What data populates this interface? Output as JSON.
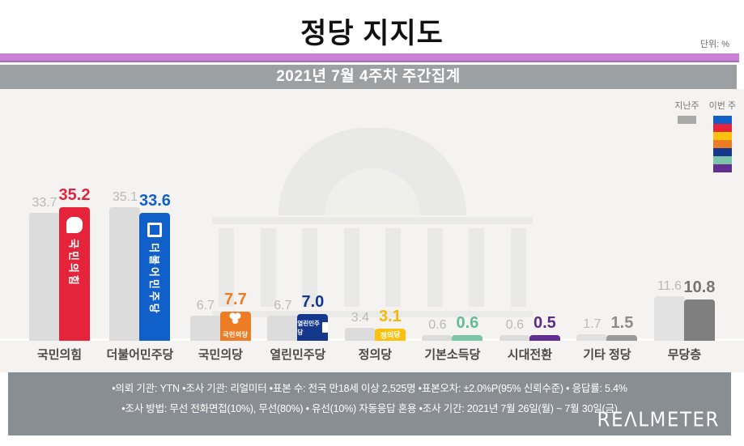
{
  "header": {
    "title": "정당 지지도",
    "unit_label": "단위: %"
  },
  "subtitle_banner": "2021년 7월 4주차 주간집계",
  "legend": {
    "last_week_label": "지난주",
    "this_week_label": "이번 주",
    "last_week_color": "#a8a8a8",
    "this_week_colors": [
      "#1160c9",
      "#e5243b",
      "#fcc10e",
      "#ee7c24",
      "#15388d",
      "#7cc5a8",
      "#632e92"
    ]
  },
  "chart_data": {
    "type": "bar",
    "title": "정당 지지도",
    "unit": "%",
    "categories": [
      "국민의힘",
      "더불어민주당",
      "국민의당",
      "열린민주당",
      "정의당",
      "기본소득당",
      "시대전환",
      "기타 정당",
      "무당층"
    ],
    "series": [
      {
        "name": "지난주",
        "values": [
          33.7,
          35.1,
          6.7,
          6.7,
          3.4,
          0.6,
          0.6,
          1.7,
          11.6
        ]
      },
      {
        "name": "이번 주",
        "values": [
          35.2,
          33.6,
          7.7,
          7.0,
          3.1,
          0.6,
          0.5,
          1.5,
          10.8
        ]
      }
    ],
    "ylim": [
      0,
      40
    ],
    "grid": false,
    "legend_position": "top-right",
    "default_last_color": "#dcdcdc",
    "parties": [
      {
        "label": "국민의힘",
        "last_week": 33.7,
        "this_week": 35.2,
        "color": "#e5243b",
        "logo": "국민의힘",
        "logo_type": "ppp"
      },
      {
        "label": "더불어민주당",
        "last_week": 35.1,
        "this_week": 33.6,
        "color": "#1160c9",
        "logo": "더불어민주당",
        "logo_type": "dp"
      },
      {
        "label": "국민의당",
        "last_week": 6.7,
        "this_week": 7.7,
        "color": "#ee7c24",
        "logo": "국민의당",
        "logo_type": "ppk"
      },
      {
        "label": "열린민주당",
        "last_week": 6.7,
        "this_week": 7.0,
        "color": "#15388d",
        "logo": "열린민주당",
        "logo_type": "open"
      },
      {
        "label": "정의당",
        "last_week": 3.4,
        "this_week": 3.1,
        "color": "#fcc10e",
        "value_color": "#f5b90a",
        "logo": "정의당",
        "logo_type": "justice"
      },
      {
        "label": "기본소득당",
        "last_week": 0.6,
        "this_week": 0.6,
        "color": "#7cc5a8",
        "value_color": "#64bb97"
      },
      {
        "label": "시대전환",
        "last_week": 0.6,
        "this_week": 0.5,
        "color": "#632e92",
        "value_color": "#5c2b86"
      },
      {
        "label": "기타 정당",
        "last_week": 1.7,
        "this_week": 1.5,
        "color": "#9a9a9a",
        "value_color": "#8c8c8c",
        "last_color": "#e0e0e0"
      },
      {
        "label": "무당층",
        "last_week": 11.6,
        "this_week": 10.8,
        "color": "#7f7f7f",
        "value_color": "#757575",
        "last_color": "#e2e2e2"
      }
    ]
  },
  "footer": {
    "line1": "•의뢰 기관: YTN •조사 기관: 리얼미터 •표본 수: 전국 만18세 이상 2,525명 •표본오차: ±2.0%P(95% 신뢰수준) • 응답률: 5.4%",
    "line2": "•조사 방법: 무선 전화면접(10%), 무선(80%) • 유선(10%) 자동응답 혼용 •조사 기간: 2021년 7월 26일(월) ~ 7월 30일(금)",
    "logo_text": "REΛLMETER"
  }
}
